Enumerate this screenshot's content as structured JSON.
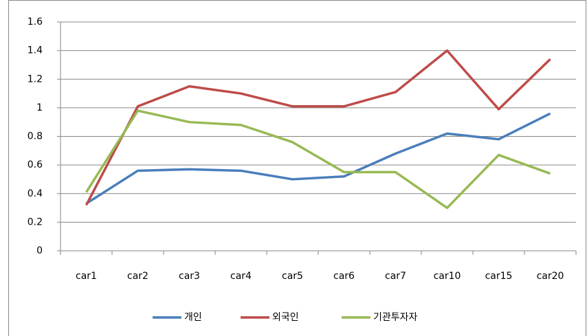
{
  "chart_data": {
    "type": "line",
    "categories": [
      "car1",
      "car2",
      "car3",
      "car4",
      "car5",
      "car6",
      "car7",
      "car10",
      "car15",
      "car20"
    ],
    "series": [
      {
        "name": "개인",
        "color": "#4a7ebb",
        "values": [
          0.33,
          0.56,
          0.57,
          0.56,
          0.5,
          0.52,
          0.68,
          0.82,
          0.78,
          0.96
        ]
      },
      {
        "name": "외국인",
        "color": "#be4b48",
        "values": [
          0.32,
          1.01,
          1.15,
          1.1,
          1.01,
          1.01,
          1.11,
          1.4,
          0.99,
          1.34
        ]
      },
      {
        "name": "기관투자자",
        "color": "#98b954",
        "values": [
          0.41,
          0.98,
          0.9,
          0.88,
          0.76,
          0.55,
          0.55,
          0.3,
          0.67,
          0.54
        ]
      }
    ],
    "ylim": [
      0,
      1.6
    ],
    "yticks": [
      0,
      0.2,
      0.4,
      0.6,
      0.8,
      1,
      1.2,
      1.4,
      1.6
    ],
    "grid": true,
    "legend": "bottom"
  }
}
